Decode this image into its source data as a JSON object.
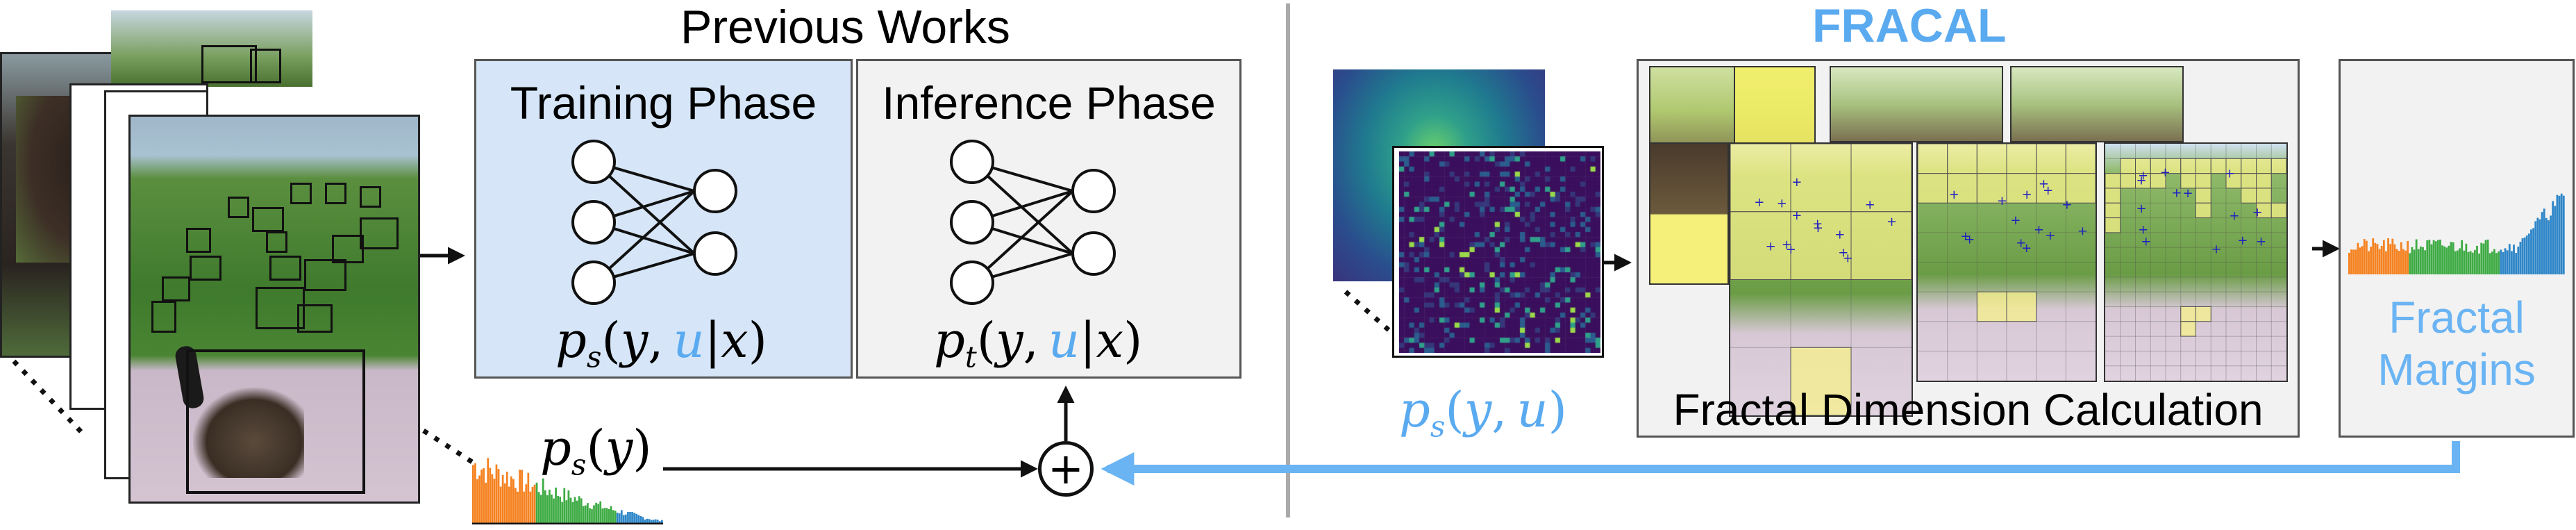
{
  "headings": {
    "previous_works": "Previous Works",
    "fracal": "FRACAL"
  },
  "previous_works": {
    "training_phase_label": "Training Phase",
    "inference_phase_label": "Inference Phase",
    "training_formula": {
      "p": "p",
      "sub": "s",
      "open": "(",
      "y": "y",
      "comma": ",",
      "u": "u",
      "bar": "|",
      "x": "x",
      "close": ")"
    },
    "inference_formula": {
      "p": "p",
      "sub": "t",
      "open": "(",
      "y": "y",
      "comma": ",",
      "u": "u",
      "bar": "|",
      "x": "x",
      "close": ")"
    }
  },
  "prior_label": {
    "p": "p",
    "sub": "s",
    "open": "(",
    "y": "y",
    "close": ")"
  },
  "fracal": {
    "joint_formula": {
      "p": "p",
      "sub": "s",
      "open": "(",
      "y": "y",
      "comma": ",",
      "u": "u",
      "close": ")"
    },
    "fractal_dimension_label": "Fractal Dimension Calculation",
    "fractal_margins_label_line1": "Fractal",
    "fractal_margins_label_line2": "Margins"
  },
  "plus_symbol": "+",
  "colors": {
    "training_panel": "#d6e6f8",
    "inference_panel": "#f2f2f2",
    "accent_blue": "#5aaaf0",
    "arrow_blue": "#6ab4f4",
    "hist_orange": "#f58220",
    "hist_green": "#3eab44",
    "hist_blue": "#2e86c8",
    "divider": "#aaaaaa",
    "tile_yellow": "#f6f08a"
  },
  "icons": [
    "network-icon",
    "plus-circle-icon",
    "histogram-icon",
    "heatmap-icon",
    "grid-overlay-icon"
  ]
}
